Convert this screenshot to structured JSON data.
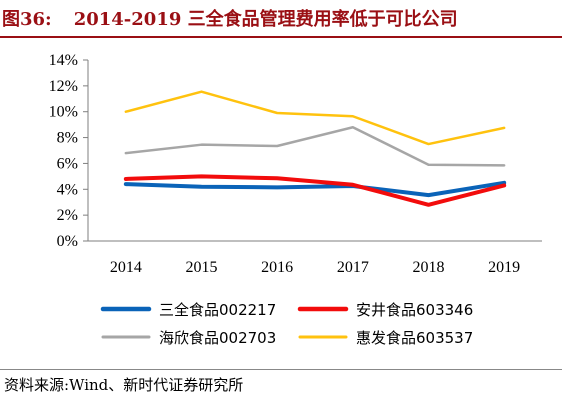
{
  "header": {
    "figure_number": "图36:",
    "title": "2014-2019 三全食品管理费用率低于可比公司"
  },
  "footer": {
    "source": "资料来源:Wind、新时代证券研究所"
  },
  "chart_data": {
    "type": "line",
    "title": "2014-2019 三全食品管理费用率低于可比公司",
    "xlabel": "",
    "ylabel": "",
    "x": [
      "2014",
      "2015",
      "2016",
      "2017",
      "2018",
      "2019"
    ],
    "y_ticks": [
      "0%",
      "2%",
      "4%",
      "6%",
      "8%",
      "10%",
      "12%",
      "14%"
    ],
    "ylim": [
      0,
      14
    ],
    "grid": false,
    "legend_position": "bottom",
    "series": [
      {
        "name": "三全食品002217",
        "color": "#0a63b8",
        "width": 4,
        "values": [
          4.4,
          4.2,
          4.15,
          4.25,
          3.55,
          4.5
        ]
      },
      {
        "name": "安井食品603346",
        "color": "#f20c0c",
        "width": 4,
        "values": [
          4.8,
          5.0,
          4.85,
          4.35,
          2.8,
          4.3
        ]
      },
      {
        "name": "海欣食品002703",
        "color": "#a6a6a6",
        "width": 2.5,
        "values": [
          6.8,
          7.45,
          7.35,
          8.8,
          5.9,
          5.85
        ]
      },
      {
        "name": "惠发食品603537",
        "color": "#ffc20e",
        "width": 2.5,
        "values": [
          10.0,
          11.55,
          9.9,
          9.65,
          7.5,
          8.75
        ]
      }
    ]
  }
}
